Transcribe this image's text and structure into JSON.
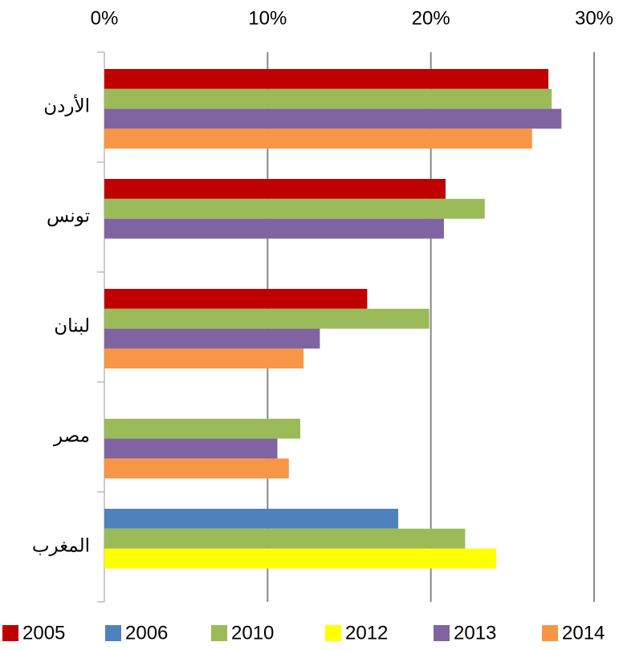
{
  "chart_data": {
    "type": "bar",
    "orientation": "horizontal",
    "categories": [
      "الأردن",
      "تونس",
      "لبنان",
      "مصر",
      "المغرب"
    ],
    "series": [
      {
        "name": "2005",
        "color": "#c00000",
        "values": [
          27.2,
          20.9,
          16.1,
          null,
          null
        ]
      },
      {
        "name": "2006",
        "color": "#4f81bd",
        "values": [
          null,
          null,
          null,
          null,
          18.0
        ]
      },
      {
        "name": "2010",
        "color": "#9bbb59",
        "values": [
          27.4,
          23.3,
          19.9,
          12.0,
          22.1
        ]
      },
      {
        "name": "2012",
        "color": "#ffff00",
        "values": [
          null,
          null,
          null,
          null,
          24.0
        ]
      },
      {
        "name": "2013",
        "color": "#8064a2",
        "values": [
          28.0,
          20.8,
          13.2,
          10.6,
          null
        ]
      },
      {
        "name": "2014",
        "color": "#f79646",
        "values": [
          26.2,
          null,
          12.2,
          11.3,
          null
        ]
      }
    ],
    "xlim": [
      0,
      30
    ],
    "xticks": [
      {
        "value": 0,
        "label": "0%"
      },
      {
        "value": 10,
        "label": "10%"
      },
      {
        "value": 20,
        "label": "20%"
      },
      {
        "value": 30,
        "label": "30%"
      }
    ],
    "grid": true,
    "legend": "bottom"
  }
}
